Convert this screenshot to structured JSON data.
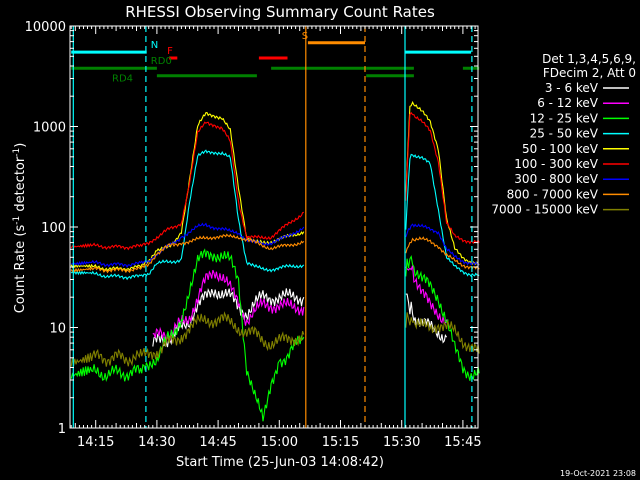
{
  "chart_data": {
    "type": "line",
    "title": "RHESSI Observing Summary Count Rates",
    "xlabel": "Start Time (25-Jun-03 14:08:42)",
    "ylabel_main": "Count Rate (s",
    "ylabel_sup": "-1",
    "ylabel_rest": " detector",
    "ylabel_sup2": "-1",
    "ylabel_close": ")",
    "yscale": "log",
    "ylim": [
      1,
      10000
    ],
    "xlim_min": [
      8.7,
      108.7
    ],
    "x_ticks": [
      {
        "min": 15,
        "label": "14:15"
      },
      {
        "min": 30,
        "label": "14:30"
      },
      {
        "min": 45,
        "label": "14:45"
      },
      {
        "min": 60,
        "label": "15:00"
      },
      {
        "min": 75,
        "label": "15:15"
      },
      {
        "min": 90,
        "label": "15:30"
      },
      {
        "min": 105,
        "label": "15:45"
      }
    ],
    "y_ticks": [
      {
        "value": 1,
        "label": "1"
      },
      {
        "value": 10,
        "label": "10"
      },
      {
        "value": 100,
        "label": "100"
      },
      {
        "value": 1000,
        "label": "1000"
      },
      {
        "value": 10000,
        "label": "10000"
      }
    ],
    "legend_header": [
      "Det 1,3,4,5,6,9,",
      "FDecim 2, Att 0"
    ],
    "legend_position": "right",
    "series": [
      {
        "name": "3 - 6 keV",
        "color": "#ffffff",
        "segments": [
          {
            "x": [
              29,
              32,
              35,
              38,
              40,
              42,
              44,
              46,
              48,
              50,
              52,
              54,
              56,
              58,
              62,
              66
            ],
            "y": [
              7,
              7.5,
              9,
              12,
              16,
              20,
              24,
              22,
              20,
              16,
              14,
              17,
              20,
              20,
              20,
              20
            ]
          },
          {
            "x": [
              91,
              92,
              93,
              95,
              97,
              99,
              101
            ],
            "y": [
              22,
              16,
              13,
              11,
              10,
              9,
              8
            ]
          }
        ]
      },
      {
        "name": "6 - 12 keV",
        "color": "#ff00ff",
        "segments": [
          {
            "x": [
              29,
              32,
              35,
              38,
              40,
              42,
              44,
              46,
              48,
              50,
              52,
              54,
              56,
              58,
              62,
              66
            ],
            "y": [
              8,
              8.5,
              10,
              13,
              18,
              30,
              38,
              32,
              24,
              18,
              12,
              14,
              17,
              17,
              16,
              16
            ]
          },
          {
            "x": [
              91,
              92,
              93,
              95,
              97,
              99,
              101
            ],
            "y": [
              36,
              40,
              34,
              22,
              16,
              14,
              12
            ]
          }
        ]
      },
      {
        "name": "12 - 25 keV",
        "color": "#00ff00",
        "segments": [
          {
            "x": [
              9,
              14,
              20,
              26,
              28,
              30,
              33,
              36,
              38,
              40,
              42,
              44,
              46,
              48,
              50,
              52,
              54,
              56,
              58,
              60,
              63,
              66
            ],
            "y": [
              3.5,
              3.5,
              3.5,
              3.6,
              3.8,
              5,
              8,
              12,
              25,
              45,
              52,
              55,
              52,
              45,
              30,
              4,
              2,
              1.2,
              3,
              4.5,
              6,
              8
            ]
          },
          {
            "x": [
              91,
              92,
              93,
              95,
              97,
              99,
              101,
              103,
              105,
              107,
              109
            ],
            "y": [
              35,
              50,
              40,
              30,
              25,
              20,
              12,
              6,
              4,
              3.5,
              3.5
            ]
          }
        ]
      },
      {
        "name": "25 - 50 keV",
        "color": "#00ffff",
        "segments": [
          {
            "x": [
              9,
              14,
              20,
              26,
              28,
              30,
              33,
              36,
              38,
              40,
              42,
              44,
              46,
              48,
              50,
              52,
              54,
              56,
              58,
              62,
              66
            ],
            "y": [
              36,
              34,
              32,
              32,
              33,
              45,
              44,
              48,
              180,
              500,
              560,
              560,
              540,
              480,
              120,
              45,
              40,
              38,
              38,
              40,
              42
            ]
          },
          {
            "x": [
              91,
              92,
              93,
              95,
              97,
              99,
              101,
              103,
              105,
              107,
              109
            ],
            "y": [
              95,
              500,
              520,
              480,
              420,
              150,
              50,
              40,
              36,
              34,
              33
            ]
          }
        ]
      },
      {
        "name": "50 - 100 keV",
        "color": "#ffff00",
        "segments": [
          {
            "x": [
              9,
              14,
              20,
              26,
              28,
              30,
              33,
              36,
              38,
              40,
              42,
              44,
              46,
              48,
              50,
              52,
              54,
              56,
              58,
              62,
              66
            ],
            "y": [
              42,
              40,
              38,
              40,
              45,
              60,
              62,
              90,
              300,
              1000,
              1350,
              1300,
              1200,
              900,
              250,
              80,
              70,
              70,
              72,
              80,
              90
            ]
          },
          {
            "x": [
              91,
              92,
              93,
              95,
              97,
              99,
              101,
              103,
              105,
              107,
              109
            ],
            "y": [
              200,
              1600,
              1700,
              1400,
              1100,
              600,
              120,
              60,
              50,
              45,
              42
            ]
          }
        ]
      },
      {
        "name": "100 - 300 keV",
        "color": "#ff0000",
        "segments": [
          {
            "x": [
              9,
              14,
              20,
              26,
              28,
              30,
              33,
              36,
              38,
              40,
              42,
              44,
              46,
              48,
              50,
              52,
              54,
              56,
              58,
              62,
              66
            ],
            "y": [
              65,
              65,
              63,
              64,
              68,
              80,
              95,
              110,
              280,
              850,
              1100,
              1050,
              950,
              700,
              180,
              80,
              78,
              78,
              80,
              105,
              140
            ]
          },
          {
            "x": [
              91,
              92,
              93,
              95,
              97,
              99,
              101,
              103,
              105,
              107,
              109
            ],
            "y": [
              190,
              1350,
              1300,
              1100,
              900,
              450,
              110,
              80,
              75,
              72,
              70
            ]
          }
        ]
      },
      {
        "name": "300 - 800 keV",
        "color": "#0000ff",
        "segments": [
          {
            "x": [
              9,
              14,
              20,
              26,
              28,
              30,
              33,
              36,
              38,
              40,
              42,
              44,
              46,
              48,
              50,
              52,
              54,
              56,
              58,
              62,
              66
            ],
            "y": [
              44,
              44,
              42,
              43,
              45,
              55,
              65,
              80,
              90,
              100,
              105,
              100,
              95,
              90,
              88,
              75,
              70,
              68,
              70,
              80,
              100
            ]
          },
          {
            "x": [
              91,
              92,
              93,
              95,
              97,
              99,
              101,
              103,
              105,
              107,
              109
            ],
            "y": [
              80,
              100,
              105,
              100,
              95,
              90,
              60,
              50,
              46,
              44,
              42
            ]
          }
        ]
      },
      {
        "name": "800 - 7000 keV",
        "color": "#ff8c00",
        "segments": [
          {
            "x": [
              9,
              14,
              20,
              26,
              28,
              30,
              33,
              36,
              38,
              40,
              42,
              44,
              46,
              48,
              50,
              52,
              54,
              56,
              58,
              62,
              66
            ],
            "y": [
              38,
              38,
              37,
              38,
              42,
              55,
              65,
              70,
              72,
              75,
              78,
              80,
              80,
              80,
              80,
              75,
              70,
              65,
              62,
              65,
              72
            ]
          },
          {
            "x": [
              91,
              92,
              93,
              95,
              97,
              99,
              101,
              103,
              105,
              107,
              109
            ],
            "y": [
              55,
              70,
              75,
              75,
              72,
              65,
              52,
              46,
              42,
              40,
              38
            ]
          }
        ]
      },
      {
        "name": "7000 - 15000 keV",
        "color": "#808000",
        "segments": [
          {
            "x": [
              9,
              14,
              20,
              26,
              28,
              30,
              33,
              36,
              38,
              40,
              42,
              44,
              46,
              48,
              50,
              52,
              54,
              56,
              58,
              62,
              66
            ],
            "y": [
              5,
              5,
              5,
              5,
              5.5,
              6,
              7,
              8.5,
              10,
              11,
              12,
              12,
              12,
              11,
              10,
              9,
              8.5,
              7.5,
              7,
              7.5,
              8.5
            ]
          },
          {
            "x": [
              91,
              92,
              93,
              95,
              97,
              99,
              101,
              103,
              105,
              107,
              109
            ],
            "y": [
              12,
              12,
              11,
              10,
              10,
              11,
              10,
              9,
              7.5,
              6.5,
              5.5
            ]
          }
        ]
      }
    ],
    "status_bars": [
      {
        "label": "N",
        "color": "#00ffff",
        "value": 5500,
        "segments": [
          [
            9,
            27.5
          ],
          [
            90.8,
            107
          ]
        ],
        "label_at": 28.5
      },
      {
        "label": "F",
        "color": "#ff0000",
        "value": 4800,
        "segments": [
          [
            33,
            35
          ]
        ],
        "label_at": 32.5
      },
      {
        "label": "",
        "color": "#ff0000",
        "value": 4800,
        "segments": [
          [
            55,
            62
          ]
        ],
        "label_at": 0
      },
      {
        "label": "S",
        "color": "#ff8c00",
        "value": 6800,
        "segments": [
          [
            67,
            81
          ]
        ],
        "label_at": 65.5
      },
      {
        "label": "RD0",
        "color": "#008000",
        "value": 3800,
        "segments": [
          [
            9,
            30
          ],
          [
            58,
            81.3
          ],
          [
            81.3,
            93
          ],
          [
            105,
            109
          ]
        ],
        "label_at": 28.5
      },
      {
        "label": "RD4",
        "color": "#008000",
        "value": 3200,
        "segments": [
          [
            30,
            54.5
          ],
          [
            81.3,
            93
          ]
        ],
        "label_at": 19
      }
    ],
    "event_lines": [
      {
        "color": "#00ffff",
        "x": 27.3,
        "dashed": true
      },
      {
        "color": "#00ffff",
        "x": 90.8,
        "dashed": false
      },
      {
        "color": "#00ffff",
        "x": 107.2,
        "dashed": true
      },
      {
        "color": "#00ffff",
        "x": 9.5,
        "dashed": false
      },
      {
        "color": "#ff8c00",
        "x": 66.5,
        "dashed": false
      },
      {
        "color": "#ff8c00",
        "x": 81.0,
        "dashed": true
      }
    ],
    "timestamp": "19-Oct-2021 23:08"
  }
}
